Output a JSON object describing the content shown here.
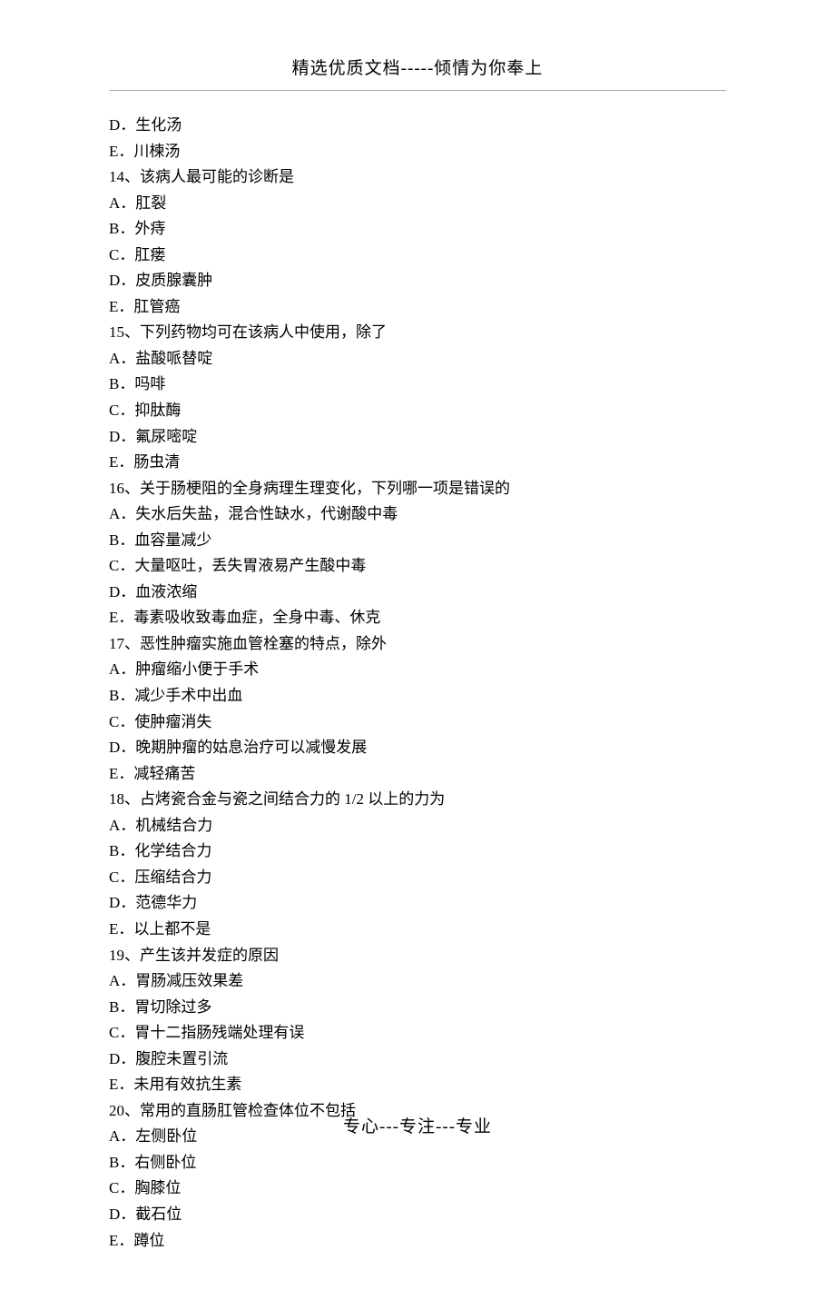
{
  "header": {
    "text": "精选优质文档-----倾情为你奉上"
  },
  "content": {
    "lines": [
      "D．生化汤",
      "E．川楝汤",
      "14、该病人最可能的诊断是",
      "A．肛裂",
      "B．外痔",
      "C．肛瘘",
      "D．皮质腺囊肿",
      "E．肛管癌",
      "15、下列药物均可在该病人中使用，除了",
      "A．盐酸哌替啶",
      "B．吗啡",
      "C．抑肽酶",
      "D．氟尿嘧啶",
      "E．肠虫清",
      "16、关于肠梗阻的全身病理生理变化，下列哪一项是错误的",
      "A．失水后失盐，混合性缺水，代谢酸中毒",
      "B．血容量减少",
      "C．大量呕吐，丢失胃液易产生酸中毒",
      "D．血液浓缩",
      "E．毒素吸收致毒血症，全身中毒、休克",
      "17、恶性肿瘤实施血管栓塞的特点，除外",
      "A．肿瘤缩小便于手术",
      "B．减少手术中出血",
      "C．使肿瘤消失",
      "D．晚期肿瘤的姑息治疗可以减慢发展",
      "E．减轻痛苦",
      "18、占烤瓷合金与瓷之间结合力的 1/2 以上的力为",
      "A．机械结合力",
      "B．化学结合力",
      "C．压缩结合力",
      "D．范德华力",
      "E．以上都不是",
      "19、产生该并发症的原因",
      "A．胃肠减压效果差",
      "B．胃切除过多",
      "C．胃十二指肠残端处理有误",
      "D．腹腔未置引流",
      "E．未用有效抗生素",
      "20、常用的直肠肛管检查体位不包括",
      "A．左侧卧位",
      "B．右侧卧位",
      "C．胸膝位",
      "D．截石位",
      "E．蹲位"
    ]
  },
  "footer": {
    "text": "专心---专注---专业"
  }
}
